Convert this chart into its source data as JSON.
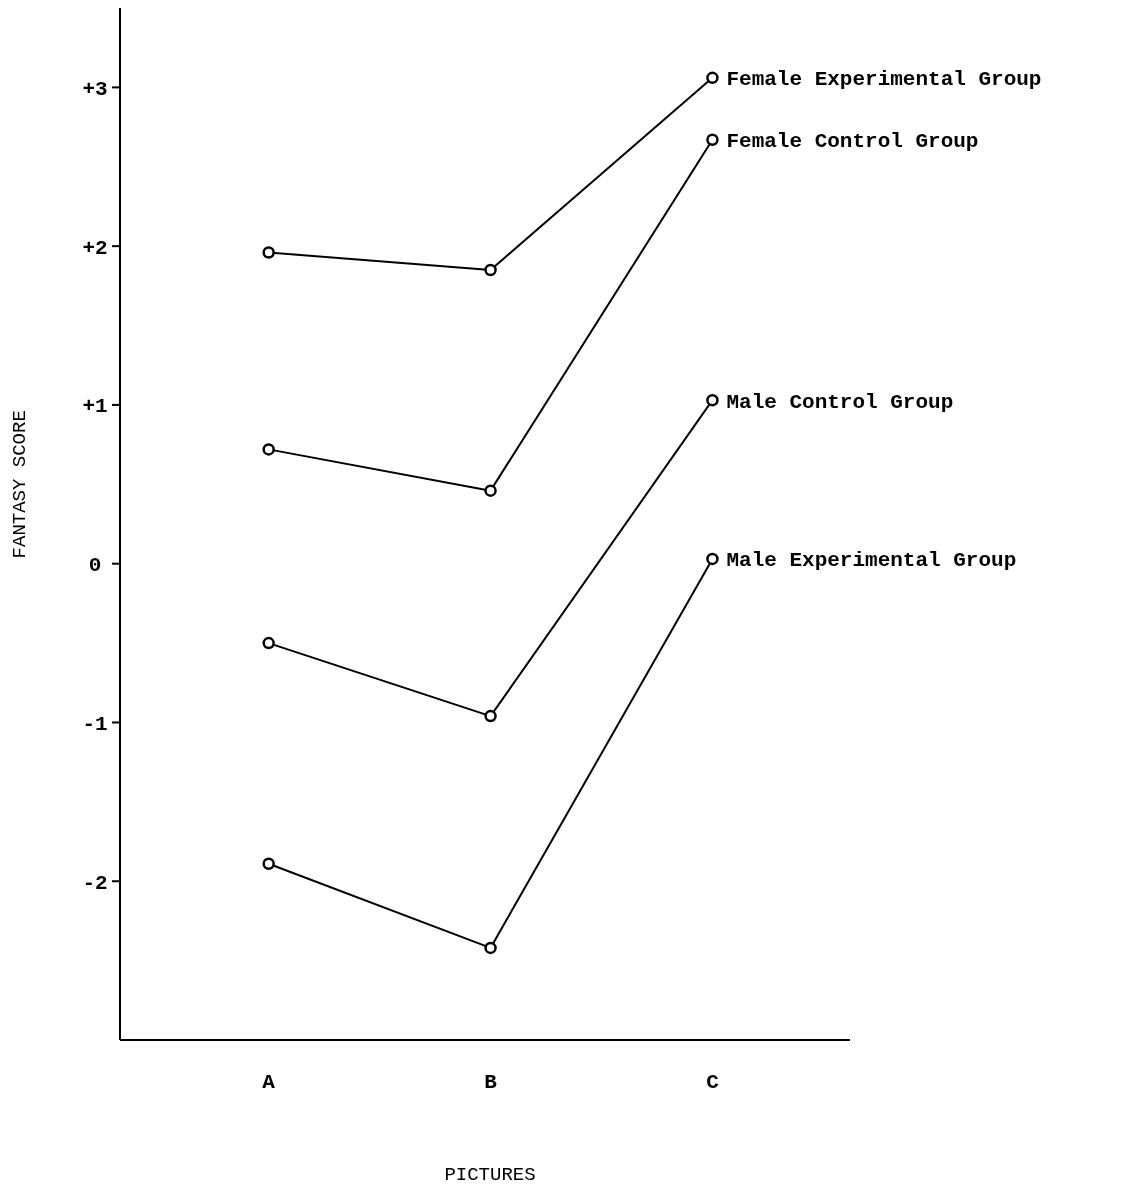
{
  "chart_data": {
    "type": "line",
    "xlabel": "PICTURES",
    "ylabel": "FANTASY SCORE",
    "categories": [
      "A",
      "B",
      "C"
    ],
    "series": [
      {
        "name": "Female Experimental Group",
        "color": "#000000",
        "values": [
          1.96,
          1.85,
          3.06
        ]
      },
      {
        "name": "Female Control Group",
        "color": "#000000",
        "values": [
          0.72,
          0.46,
          2.67
        ]
      },
      {
        "name": "Male Control Group",
        "color": "#000000",
        "values": [
          -0.5,
          -0.96,
          1.03
        ]
      },
      {
        "name": "Male Experimental Group",
        "color": "#000000",
        "values": [
          -1.89,
          -2.42,
          0.03
        ]
      }
    ],
    "ylim": [
      -3,
      3.5
    ],
    "yticks": [
      {
        "value": 3,
        "label": "+3"
      },
      {
        "value": 2,
        "label": "+2"
      },
      {
        "value": 1,
        "label": "+1"
      },
      0,
      -1,
      -2
    ],
    "marker": "circle",
    "line_style": "solid",
    "legend": false,
    "grid": false
  }
}
